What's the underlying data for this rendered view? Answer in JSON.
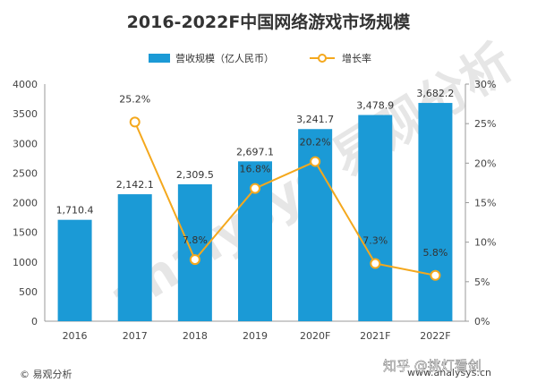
{
  "chart_data": {
    "type": "bar",
    "title": "2016-2022F中国网络游戏市场规模",
    "categories": [
      "2016",
      "2017",
      "2018",
      "2019",
      "2020F",
      "2021F",
      "2022F"
    ],
    "series": [
      {
        "name": "营收规模（亿人民币）",
        "type": "bar",
        "axis": "left",
        "values": [
          1710.4,
          2142.1,
          2309.5,
          2697.1,
          3241.7,
          3478.9,
          3682.2
        ],
        "labels": [
          "1,710.4",
          "2,142.1",
          "2,309.5",
          "2,697.1",
          "3,241.7",
          "3,478.9",
          "3,682.2"
        ],
        "color": "#1b9ad6"
      },
      {
        "name": "增长率",
        "type": "line",
        "axis": "right",
        "values": [
          null,
          25.2,
          7.8,
          16.8,
          20.2,
          7.3,
          5.8
        ],
        "labels": [
          "",
          "25.2%",
          "7.8%",
          "16.8%",
          "20.2%",
          "7.3%",
          "5.8%"
        ],
        "color": "#f4a81d"
      }
    ],
    "y_left": {
      "min": 0,
      "max": 4000,
      "step": 500,
      "ticks": [
        "0",
        "500",
        "1000",
        "1500",
        "2000",
        "2500",
        "3000",
        "3500",
        "4000"
      ]
    },
    "y_right": {
      "min": 0,
      "max": 30,
      "step": 5,
      "ticks": [
        "0%",
        "5%",
        "10%",
        "15%",
        "20%",
        "25%",
        "30%"
      ]
    },
    "grid": false,
    "legend_position": "top"
  },
  "footer": {
    "source": "© 易观分析",
    "url": "www.analysys.cn",
    "watermark": "知乎 @挑灯看剑"
  },
  "background_watermark": "analysys 易观分析"
}
